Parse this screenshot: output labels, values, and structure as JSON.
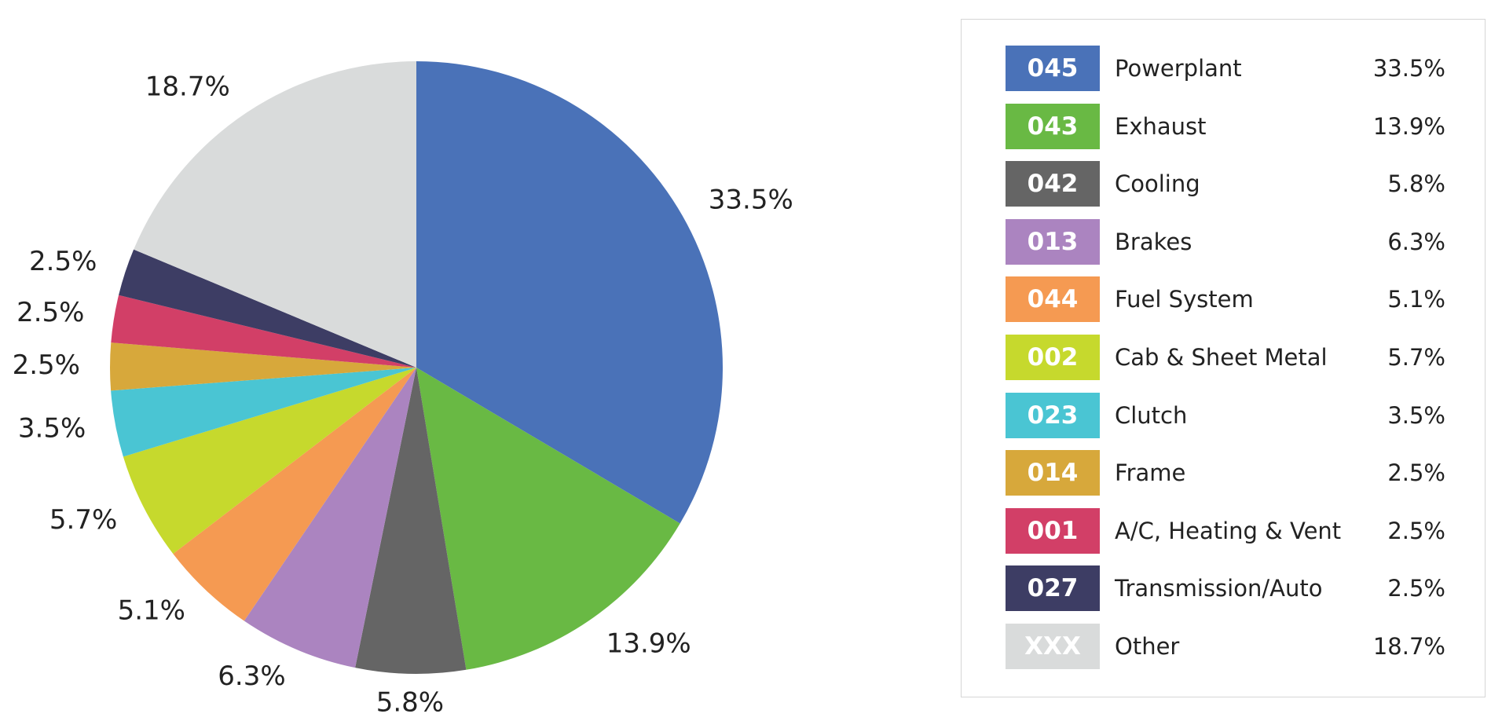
{
  "chart_data": {
    "type": "pie",
    "title": "",
    "slices": [
      {
        "code": "045",
        "name": "Powerplant",
        "value": 33.5,
        "label": "33.5%",
        "color": "#4a72b8"
      },
      {
        "code": "043",
        "name": "Exhaust",
        "value": 13.9,
        "label": "13.9%",
        "color": "#69b944"
      },
      {
        "code": "042",
        "name": "Cooling",
        "value": 5.8,
        "label": "5.8%",
        "color": "#656565"
      },
      {
        "code": "013",
        "name": "Brakes",
        "value": 6.3,
        "label": "6.3%",
        "color": "#ab84c0"
      },
      {
        "code": "044",
        "name": "Fuel System",
        "value": 5.1,
        "label": "5.1%",
        "color": "#f59a52"
      },
      {
        "code": "002",
        "name": "Cab & Sheet Metal",
        "value": 5.7,
        "label": "5.7%",
        "color": "#c6d92d"
      },
      {
        "code": "023",
        "name": "Clutch",
        "value": 3.5,
        "label": "3.5%",
        "color": "#4ac5d3"
      },
      {
        "code": "014",
        "name": "Frame",
        "value": 2.5,
        "label": "2.5%",
        "color": "#d7a83b"
      },
      {
        "code": "001",
        "name": "A/C, Heating & Vent",
        "value": 2.5,
        "label": "2.5%",
        "color": "#d23f67"
      },
      {
        "code": "027",
        "name": "Transmission/Auto",
        "value": 2.5,
        "label": "2.5%",
        "color": "#3d3d64"
      },
      {
        "code": "XXX",
        "name": "Other",
        "value": 18.7,
        "label": "18.7%",
        "color": "#d9dbdb"
      }
    ],
    "legend_placement": "right",
    "start_angle": "12 o'clock",
    "direction": "clockwise"
  }
}
